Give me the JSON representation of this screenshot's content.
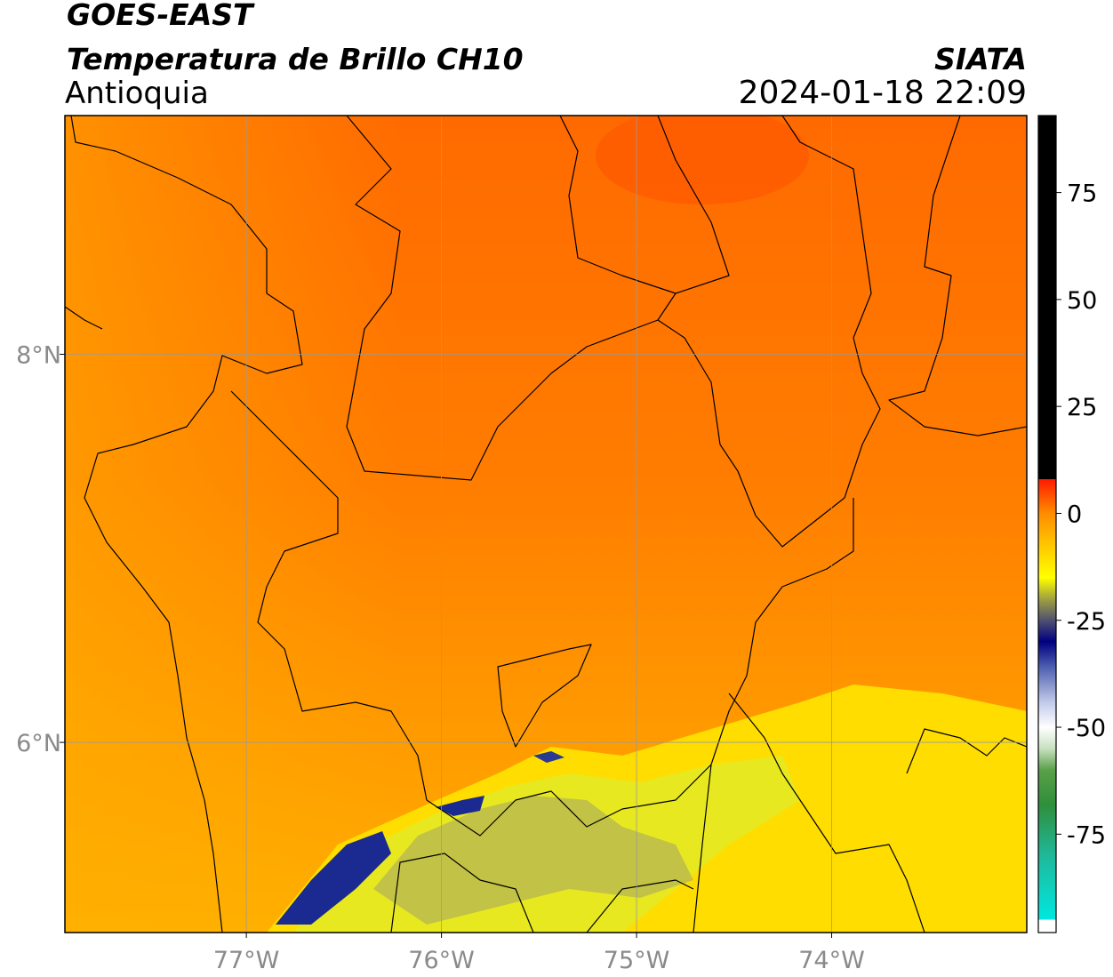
{
  "header": {
    "title": "GOES-EAST",
    "subtitle": "Temperatura de Brillo CH10",
    "region": "Antioquia",
    "source": "SIATA",
    "timestamp": "2024-01-18 22:09"
  },
  "map": {
    "type": "map",
    "xlim": [
      -77.93,
      -73.0
    ],
    "ylim": [
      5.02,
      9.23
    ],
    "xticks": [
      {
        "value": -77,
        "label": "77°W"
      },
      {
        "value": -76,
        "label": "76°W"
      },
      {
        "value": -75,
        "label": "75°W"
      },
      {
        "value": -74,
        "label": "74°W"
      }
    ],
    "yticks": [
      {
        "value": 8,
        "label": "8°N"
      },
      {
        "value": 6,
        "label": "6°N"
      }
    ],
    "grid": true,
    "colorbar": {
      "lim": [
        -98,
        93
      ],
      "ticks": [
        75,
        50,
        25,
        0,
        -25,
        -50,
        -75
      ],
      "stops": [
        [
          -98,
          "#ffffff"
        ],
        [
          -95,
          "#ffffff"
        ],
        [
          -95,
          "#00e8e0"
        ],
        [
          -80,
          "#1fb89a"
        ],
        [
          -68,
          "#2f8f3a"
        ],
        [
          -60,
          "#5aa04a"
        ],
        [
          -55,
          "#c8e0c0"
        ],
        [
          -50,
          "#ffffff"
        ],
        [
          -44,
          "#c0c8e8"
        ],
        [
          -36,
          "#5060b0"
        ],
        [
          -30,
          "#000080"
        ],
        [
          -25,
          "#505070"
        ],
        [
          -20,
          "#a0a040"
        ],
        [
          -15,
          "#ffff00"
        ],
        [
          -8,
          "#ffcc00"
        ],
        [
          0,
          "#ff8c00"
        ],
        [
          8,
          "#ff1a00"
        ],
        [
          8,
          "#000000"
        ],
        [
          93,
          "#000000"
        ]
      ]
    }
  }
}
